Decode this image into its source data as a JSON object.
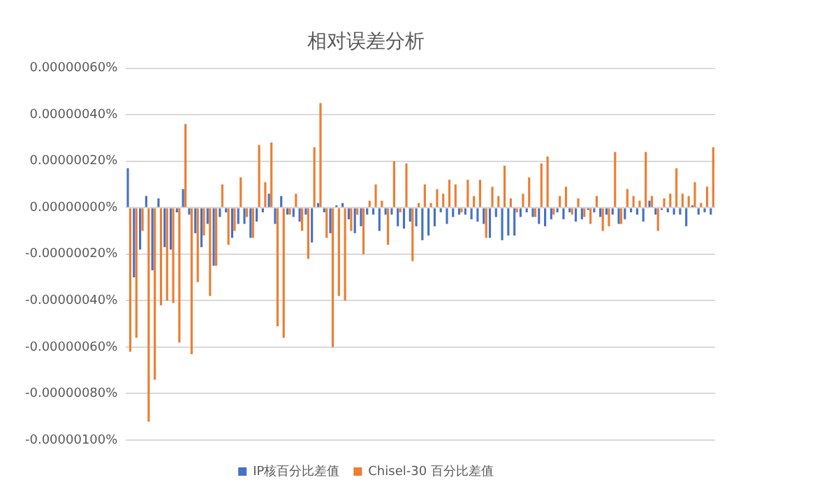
{
  "chart_data": {
    "type": "bar",
    "title": "相对误差分析",
    "categories": [
      null,
      null,
      null,
      null,
      null,
      null,
      null,
      null,
      null,
      null,
      null,
      null,
      null,
      null,
      null,
      null,
      null,
      null,
      null,
      null,
      null,
      null,
      null,
      null,
      null,
      null,
      null,
      null,
      null,
      null,
      null,
      null,
      null,
      null,
      null,
      null,
      null,
      null,
      null,
      null,
      null,
      null,
      null,
      null,
      null,
      null,
      null,
      null,
      null,
      null,
      null,
      null,
      null,
      null,
      null,
      null,
      null,
      null,
      null,
      null,
      null,
      null,
      null,
      null,
      null,
      null,
      null,
      null,
      null,
      null,
      null,
      null,
      null,
      null,
      null,
      null,
      null,
      null,
      null,
      null,
      null,
      null,
      null,
      null,
      null,
      null,
      null,
      null,
      null,
      null,
      null,
      null,
      null,
      null,
      null,
      null
    ],
    "series": [
      {
        "name": "IP核百分比差值",
        "color": "#4472c4",
        "values": [
          1.7e-07,
          -3e-07,
          -1.8e-07,
          5e-08,
          -2.7e-07,
          4e-08,
          -1.7e-07,
          -1.8e-07,
          -2e-08,
          8e-08,
          -3e-08,
          -1.1e-07,
          -1.7e-07,
          -7e-08,
          -2.5e-07,
          -4e-08,
          -2e-08,
          -1.3e-07,
          -7e-08,
          -7e-08,
          -1.3e-07,
          -6e-08,
          -2e-08,
          6e-08,
          -7e-08,
          5e-08,
          -3e-08,
          -4e-08,
          -6e-08,
          -3e-08,
          -1.5e-07,
          2e-08,
          -2e-08,
          -1.1e-07,
          1e-08,
          2e-08,
          -5e-08,
          -1.1e-07,
          -8e-08,
          -3e-08,
          -3e-08,
          -1e-07,
          -3e-08,
          -3e-08,
          -8e-08,
          -9e-08,
          -6e-08,
          -8e-08,
          -1.4e-07,
          -1.2e-07,
          -8e-08,
          -2e-08,
          -7e-08,
          -4e-08,
          -3e-08,
          -3e-08,
          -5e-08,
          -6e-08,
          -7e-08,
          -1.3e-07,
          -4e-08,
          -1.4e-07,
          -1.2e-07,
          -1.2e-07,
          -4e-08,
          -2e-08,
          -4e-08,
          -7e-08,
          -8e-08,
          -5e-08,
          -2e-08,
          -5e-08,
          -2e-08,
          -6e-08,
          -5e-08,
          -1e-08,
          -2e-08,
          -4e-08,
          -3e-08,
          -3e-08,
          -7e-08,
          -5e-08,
          -2e-08,
          -3e-08,
          -6e-08,
          3e-08,
          -3e-08,
          -1e-08,
          -2e-08,
          -3e-08,
          -3e-08,
          -8e-08,
          1e-08,
          -3e-08,
          -2e-08,
          -3e-08
        ]
      },
      {
        "name": "Chisel-30 百分比差值",
        "color": "#ed7d31",
        "values": [
          -6.2e-07,
          -5.6e-07,
          -1e-07,
          -9.2e-07,
          -7.4e-07,
          -4.2e-07,
          -4e-07,
          -4.1e-07,
          -5.8e-07,
          3.6e-07,
          -6.3e-07,
          -3.2e-07,
          -1.2e-07,
          -3.8e-07,
          -2.5e-07,
          1e-07,
          -1.6e-07,
          -1e-07,
          1.3e-07,
          -4e-08,
          -1.3e-07,
          2.7e-07,
          1.1e-07,
          2.8e-07,
          -5.1e-07,
          -5.6e-07,
          -3e-08,
          6e-08,
          -1e-07,
          -2.2e-07,
          2.6e-07,
          4.5e-07,
          -1.3e-07,
          -6e-07,
          -3.8e-07,
          -4e-07,
          -1e-07,
          -3e-08,
          -2e-07,
          3e-08,
          1e-07,
          3e-08,
          -1.6e-07,
          2e-07,
          -2e-08,
          1.9e-07,
          -2.3e-07,
          2e-08,
          1e-07,
          2e-08,
          8e-08,
          6e-08,
          1.2e-07,
          1e-07,
          -2e-08,
          1.2e-07,
          5e-08,
          1.2e-07,
          -1.3e-07,
          9e-08,
          5e-08,
          1.8e-07,
          4e-08,
          -2e-08,
          6e-08,
          1.3e-07,
          -4e-08,
          1.9e-07,
          2.2e-07,
          -3e-08,
          5e-08,
          9e-08,
          -3e-08,
          4e-08,
          -4e-08,
          -7e-08,
          5e-08,
          -1e-07,
          -8e-08,
          2.4e-07,
          -7e-08,
          8e-08,
          5e-08,
          3e-08,
          2.4e-07,
          5e-08,
          -1e-07,
          4e-08,
          6e-08,
          1.7e-07,
          6e-08,
          5e-08,
          1.1e-07,
          2e-08,
          9e-08,
          2.6e-07
        ]
      }
    ],
    "ylim": [
      -1e-06,
      6e-07
    ],
    "yticks": [
      {
        "value": 6e-07,
        "label": "0.00000060%"
      },
      {
        "value": 4e-07,
        "label": "0.00000040%"
      },
      {
        "value": 2e-07,
        "label": "0.00000020%"
      },
      {
        "value": 0,
        "label": "0.00000000%"
      },
      {
        "value": -2e-07,
        "label": "-0.00000020%"
      },
      {
        "value": -4e-07,
        "label": "-0.00000040%"
      },
      {
        "value": -6e-07,
        "label": "-0.00000060%"
      },
      {
        "value": -8e-07,
        "label": "-0.00000080%"
      },
      {
        "value": -1e-06,
        "label": "-0.00000100%"
      }
    ],
    "grid": "y",
    "legend": "bottom",
    "tick_labels": "y"
  }
}
